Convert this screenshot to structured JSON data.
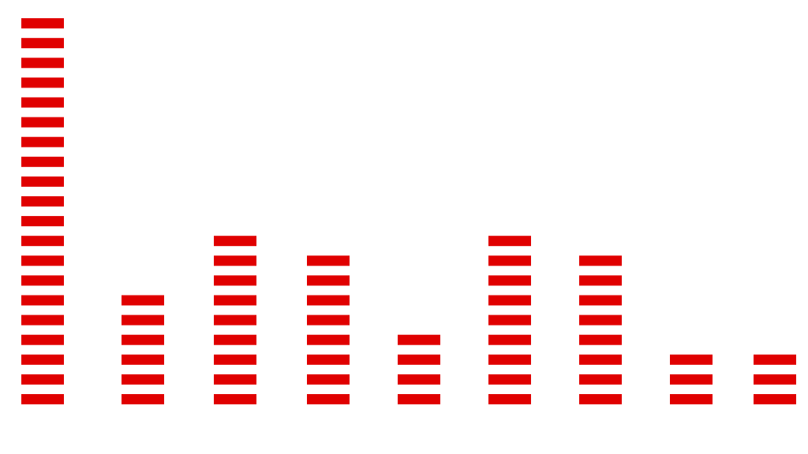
{
  "chart_data": {
    "type": "pictograph",
    "values": [
      20,
      6,
      9,
      8,
      4,
      9,
      8,
      3,
      3
    ],
    "color": "#e00000"
  }
}
